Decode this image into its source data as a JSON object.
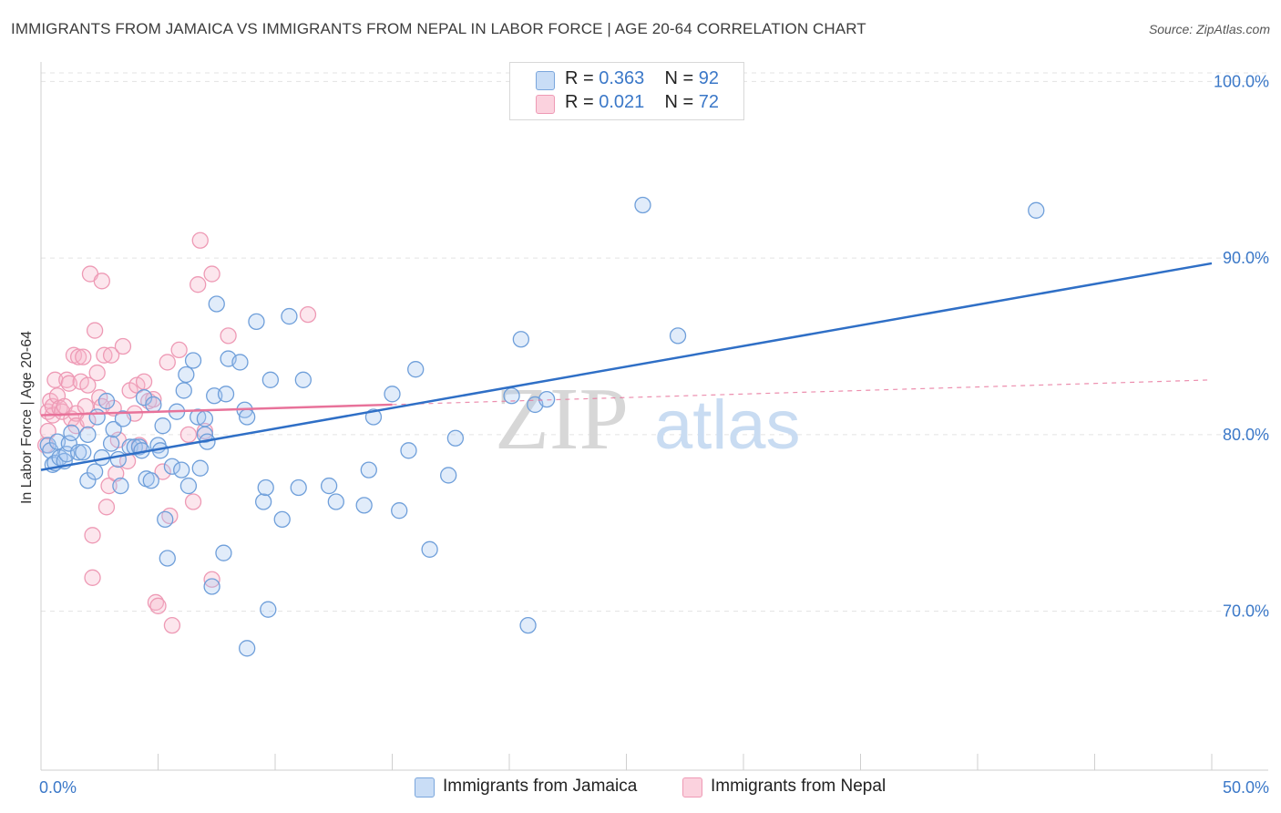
{
  "title": "IMMIGRANTS FROM JAMAICA VS IMMIGRANTS FROM NEPAL IN LABOR FORCE | AGE 20-64 CORRELATION CHART",
  "source": "Source: ZipAtlas.com",
  "watermark": {
    "zip": "ZIP",
    "atlas": "atlas"
  },
  "legend": {
    "rows": [
      {
        "r_label": "R =",
        "r_value": "0.363",
        "n_label": "N =",
        "n_value": "92",
        "color": "#a9c8f0"
      },
      {
        "r_label": "R =",
        "r_value": "0.021",
        "n_label": "N =",
        "n_value": "72",
        "color": "#f7b7ca"
      }
    ]
  },
  "bottom_legend": {
    "jamaica": "Immigrants from Jamaica",
    "nepal": "Immigrants from Nepal"
  },
  "chart_data": {
    "type": "scatter",
    "title": "IMMIGRANTS FROM JAMAICA VS IMMIGRANTS FROM NEPAL IN LABOR FORCE | AGE 20-64 CORRELATION CHART",
    "xlabel": "",
    "ylabel": "In Labor Force | Age 20-64",
    "xlim": [
      0,
      50
    ],
    "ylim": [
      61,
      101
    ],
    "x_tick_labels": [
      "0.0%",
      "50.0%"
    ],
    "y_ticks": [
      70,
      80,
      90,
      100
    ],
    "y_tick_labels": [
      "70.0%",
      "80.0%",
      "90.0%",
      "100.0%"
    ],
    "grid": true,
    "legend_position": "top-center",
    "colors": {
      "jamaica": "#3b78c8",
      "jamaica_fill": "#a9c8f0",
      "nepal": "#e8729a",
      "nepal_fill": "#f7b7ca"
    },
    "series": [
      {
        "name": "Immigrants from Jamaica",
        "r": 0.363,
        "n": 92,
        "trend": {
          "x": [
            0,
            50
          ],
          "y": [
            78.0,
            89.7
          ]
        },
        "points": [
          [
            0.3,
            79.4
          ],
          [
            0.4,
            79.1
          ],
          [
            0.5,
            78.3
          ],
          [
            0.6,
            78.4
          ],
          [
            0.7,
            79.6
          ],
          [
            0.8,
            78.7
          ],
          [
            1.0,
            78.5
          ],
          [
            1.1,
            78.9
          ],
          [
            1.2,
            79.5
          ],
          [
            1.3,
            80.1
          ],
          [
            1.6,
            79.0
          ],
          [
            1.8,
            79.0
          ],
          [
            2.0,
            77.4
          ],
          [
            2.0,
            80.0
          ],
          [
            2.3,
            77.9
          ],
          [
            2.4,
            81.0
          ],
          [
            2.6,
            78.7
          ],
          [
            2.8,
            81.9
          ],
          [
            3.0,
            79.5
          ],
          [
            3.1,
            80.3
          ],
          [
            3.3,
            78.6
          ],
          [
            3.4,
            77.1
          ],
          [
            3.5,
            80.9
          ],
          [
            3.8,
            79.3
          ],
          [
            4.0,
            79.3
          ],
          [
            4.2,
            79.3
          ],
          [
            4.3,
            79.1
          ],
          [
            4.4,
            82.1
          ],
          [
            4.5,
            77.5
          ],
          [
            4.7,
            77.4
          ],
          [
            4.8,
            81.7
          ],
          [
            5.0,
            79.4
          ],
          [
            5.1,
            79.1
          ],
          [
            5.2,
            80.5
          ],
          [
            5.3,
            75.2
          ],
          [
            5.4,
            73.0
          ],
          [
            5.6,
            78.2
          ],
          [
            5.8,
            81.3
          ],
          [
            6.0,
            78.0
          ],
          [
            6.1,
            82.5
          ],
          [
            6.2,
            83.4
          ],
          [
            6.3,
            77.1
          ],
          [
            6.5,
            84.2
          ],
          [
            6.7,
            81.0
          ],
          [
            6.8,
            78.1
          ],
          [
            7.0,
            80.9
          ],
          [
            7.0,
            80.0
          ],
          [
            7.1,
            79.6
          ],
          [
            7.3,
            71.4
          ],
          [
            7.4,
            82.2
          ],
          [
            7.5,
            87.4
          ],
          [
            7.8,
            73.3
          ],
          [
            7.9,
            82.3
          ],
          [
            8.0,
            84.3
          ],
          [
            8.5,
            84.1
          ],
          [
            8.7,
            81.4
          ],
          [
            8.8,
            81.0
          ],
          [
            8.8,
            67.9
          ],
          [
            9.2,
            86.4
          ],
          [
            9.5,
            76.2
          ],
          [
            9.6,
            77.0
          ],
          [
            9.7,
            70.1
          ],
          [
            9.8,
            83.1
          ],
          [
            10.3,
            75.2
          ],
          [
            10.6,
            86.7
          ],
          [
            11.0,
            77.0
          ],
          [
            11.2,
            83.1
          ],
          [
            12.3,
            77.1
          ],
          [
            12.6,
            76.2
          ],
          [
            13.8,
            76.0
          ],
          [
            14.0,
            78.0
          ],
          [
            14.2,
            81.0
          ],
          [
            15.0,
            82.3
          ],
          [
            15.3,
            75.7
          ],
          [
            15.7,
            79.1
          ],
          [
            16.0,
            83.7
          ],
          [
            16.6,
            73.5
          ],
          [
            17.4,
            77.7
          ],
          [
            17.7,
            79.8
          ],
          [
            20.1,
            82.2
          ],
          [
            20.5,
            85.4
          ],
          [
            20.8,
            69.2
          ],
          [
            21.1,
            81.7
          ],
          [
            21.6,
            82.0
          ],
          [
            23.5,
            100.1
          ],
          [
            25.7,
            93.0
          ],
          [
            27.2,
            85.6
          ],
          [
            42.5,
            92.7
          ]
        ]
      },
      {
        "name": "Immigrants from Nepal",
        "r": 0.021,
        "n": 72,
        "trend": {
          "x": [
            0,
            15
          ],
          "y": [
            81.1,
            81.7
          ]
        },
        "trend_extension": {
          "x": [
            15,
            50
          ],
          "y": [
            81.7,
            83.1
          ]
        },
        "points": [
          [
            0.2,
            79.4
          ],
          [
            0.3,
            80.2
          ],
          [
            0.3,
            81.3
          ],
          [
            0.4,
            81.9
          ],
          [
            0.5,
            81.1
          ],
          [
            0.5,
            81.6
          ],
          [
            0.6,
            83.1
          ],
          [
            0.7,
            82.2
          ],
          [
            0.8,
            81.5
          ],
          [
            0.9,
            81.3
          ],
          [
            1.0,
            81.6
          ],
          [
            1.1,
            83.1
          ],
          [
            1.2,
            82.9
          ],
          [
            1.3,
            80.9
          ],
          [
            1.4,
            84.5
          ],
          [
            1.5,
            81.2
          ],
          [
            1.5,
            80.5
          ],
          [
            1.6,
            84.4
          ],
          [
            1.7,
            83.0
          ],
          [
            1.8,
            84.4
          ],
          [
            1.9,
            81.6
          ],
          [
            2.0,
            80.8
          ],
          [
            2.0,
            82.8
          ],
          [
            2.1,
            89.1
          ],
          [
            2.2,
            74.3
          ],
          [
            2.2,
            71.9
          ],
          [
            2.3,
            85.9
          ],
          [
            2.4,
            83.5
          ],
          [
            2.5,
            82.1
          ],
          [
            2.6,
            81.6
          ],
          [
            2.6,
            88.7
          ],
          [
            2.7,
            84.5
          ],
          [
            2.8,
            75.9
          ],
          [
            2.9,
            77.1
          ],
          [
            3.0,
            84.5
          ],
          [
            3.1,
            81.5
          ],
          [
            3.2,
            77.8
          ],
          [
            3.3,
            79.7
          ],
          [
            3.5,
            85.0
          ],
          [
            3.7,
            78.5
          ],
          [
            3.8,
            82.5
          ],
          [
            4.0,
            81.2
          ],
          [
            4.1,
            82.8
          ],
          [
            4.2,
            79.4
          ],
          [
            4.4,
            83.0
          ],
          [
            4.6,
            81.9
          ],
          [
            4.8,
            82.0
          ],
          [
            4.9,
            70.5
          ],
          [
            5.0,
            70.3
          ],
          [
            5.2,
            77.9
          ],
          [
            5.4,
            84.1
          ],
          [
            5.5,
            75.4
          ],
          [
            5.6,
            69.2
          ],
          [
            5.9,
            84.8
          ],
          [
            6.3,
            80.0
          ],
          [
            6.5,
            76.2
          ],
          [
            6.7,
            88.5
          ],
          [
            6.8,
            91.0
          ],
          [
            7.0,
            80.2
          ],
          [
            7.3,
            89.1
          ],
          [
            7.3,
            71.8
          ],
          [
            8.0,
            85.6
          ],
          [
            11.4,
            86.8
          ]
        ]
      }
    ]
  }
}
